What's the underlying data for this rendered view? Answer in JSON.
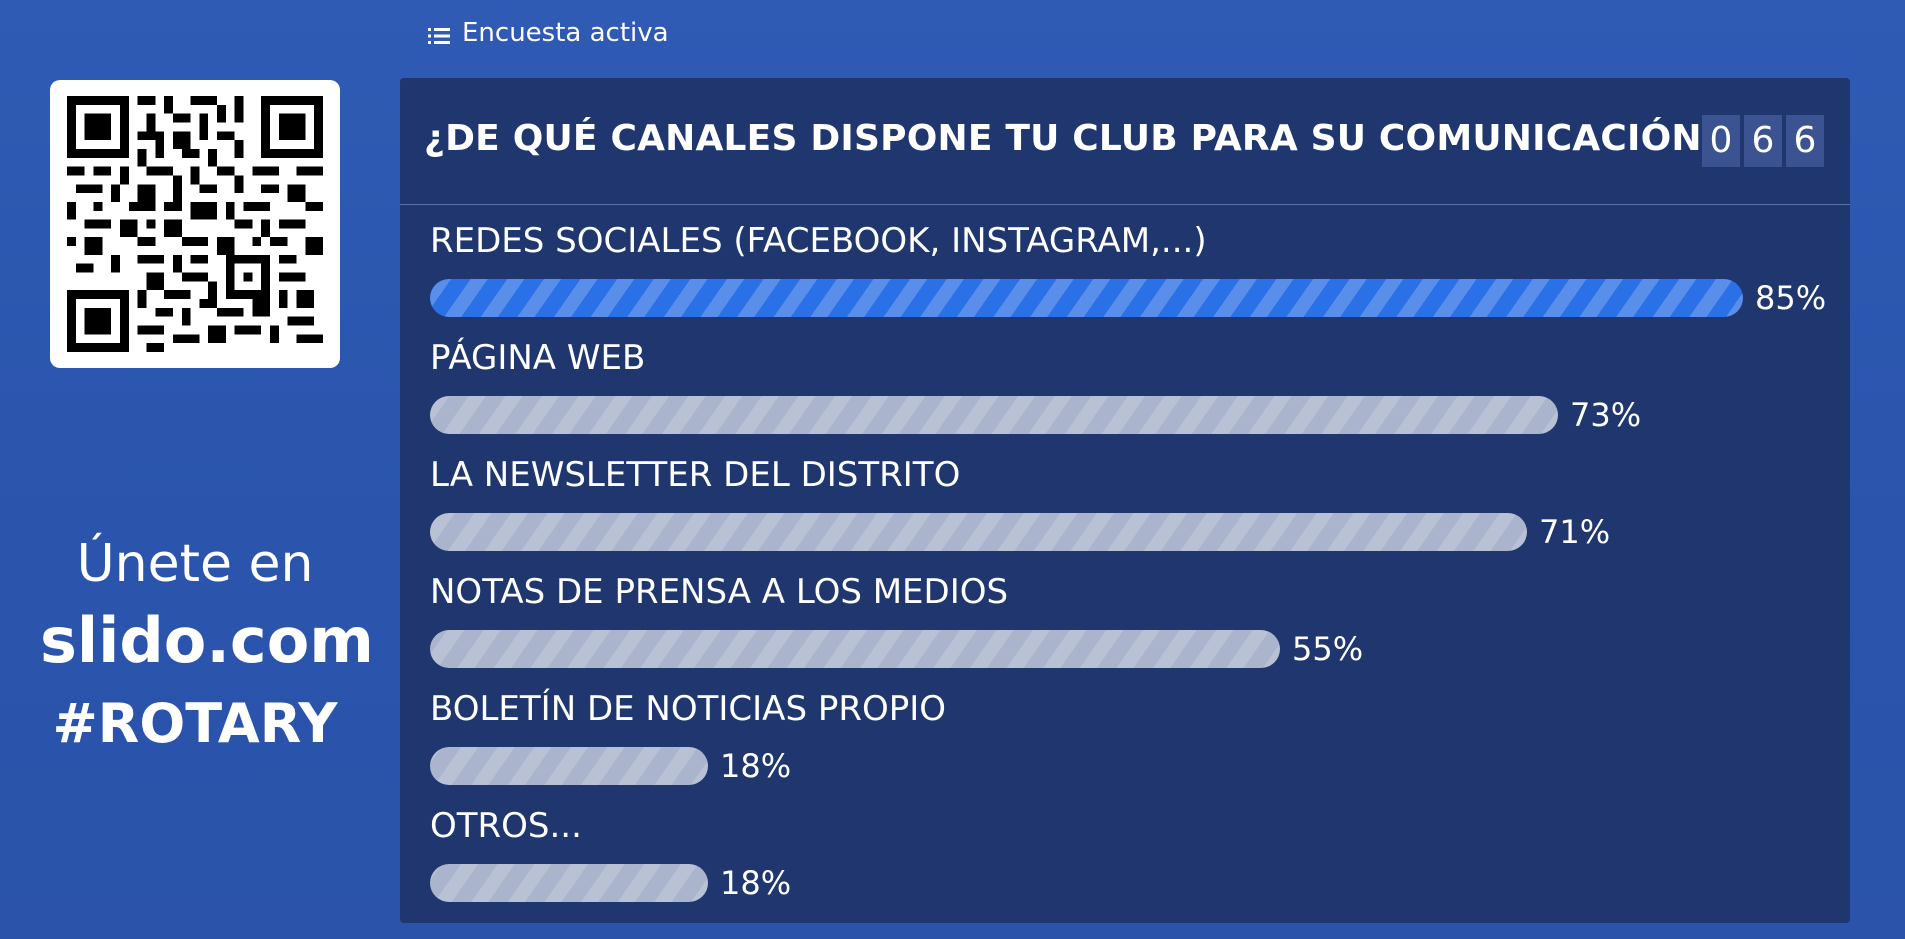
{
  "header": {
    "active_label": "Encuesta activa",
    "active_icon": "list-icon"
  },
  "join": {
    "line1": "Únete en",
    "site": "slido.com",
    "code": "#ROTARY"
  },
  "poll": {
    "title": "¿DE QUÉ CANALES DISPONE TU CLUB PARA SU COMUNICACIÓN?",
    "counter_digits": [
      "0",
      "6",
      "6"
    ],
    "options": [
      {
        "label": "REDES SOCIALES (FACEBOOK, INSTAGRAM,...)",
        "percent": 85,
        "percent_text": "85%",
        "leader": true
      },
      {
        "label": "PÁGINA WEB",
        "percent": 73,
        "percent_text": "73%",
        "leader": false
      },
      {
        "label": "LA NEWSLETTER DEL DISTRITO",
        "percent": 71,
        "percent_text": "71%",
        "leader": false
      },
      {
        "label": "NOTAS DE PRENSA A LOS MEDIOS",
        "percent": 55,
        "percent_text": "55%",
        "leader": false
      },
      {
        "label": "BOLETÍN DE NOTICIAS PROPIO",
        "percent": 18,
        "percent_text": "18%",
        "leader": false
      },
      {
        "label": "OTROS...",
        "percent": 18,
        "percent_text": "18%",
        "leader": false
      }
    ]
  },
  "colors": {
    "background": "#2f5bb4",
    "panel": "#1f366f",
    "leader_bar": "#2a70e6",
    "bar": "#aab4cc",
    "counter_box": "#3b5390"
  }
}
